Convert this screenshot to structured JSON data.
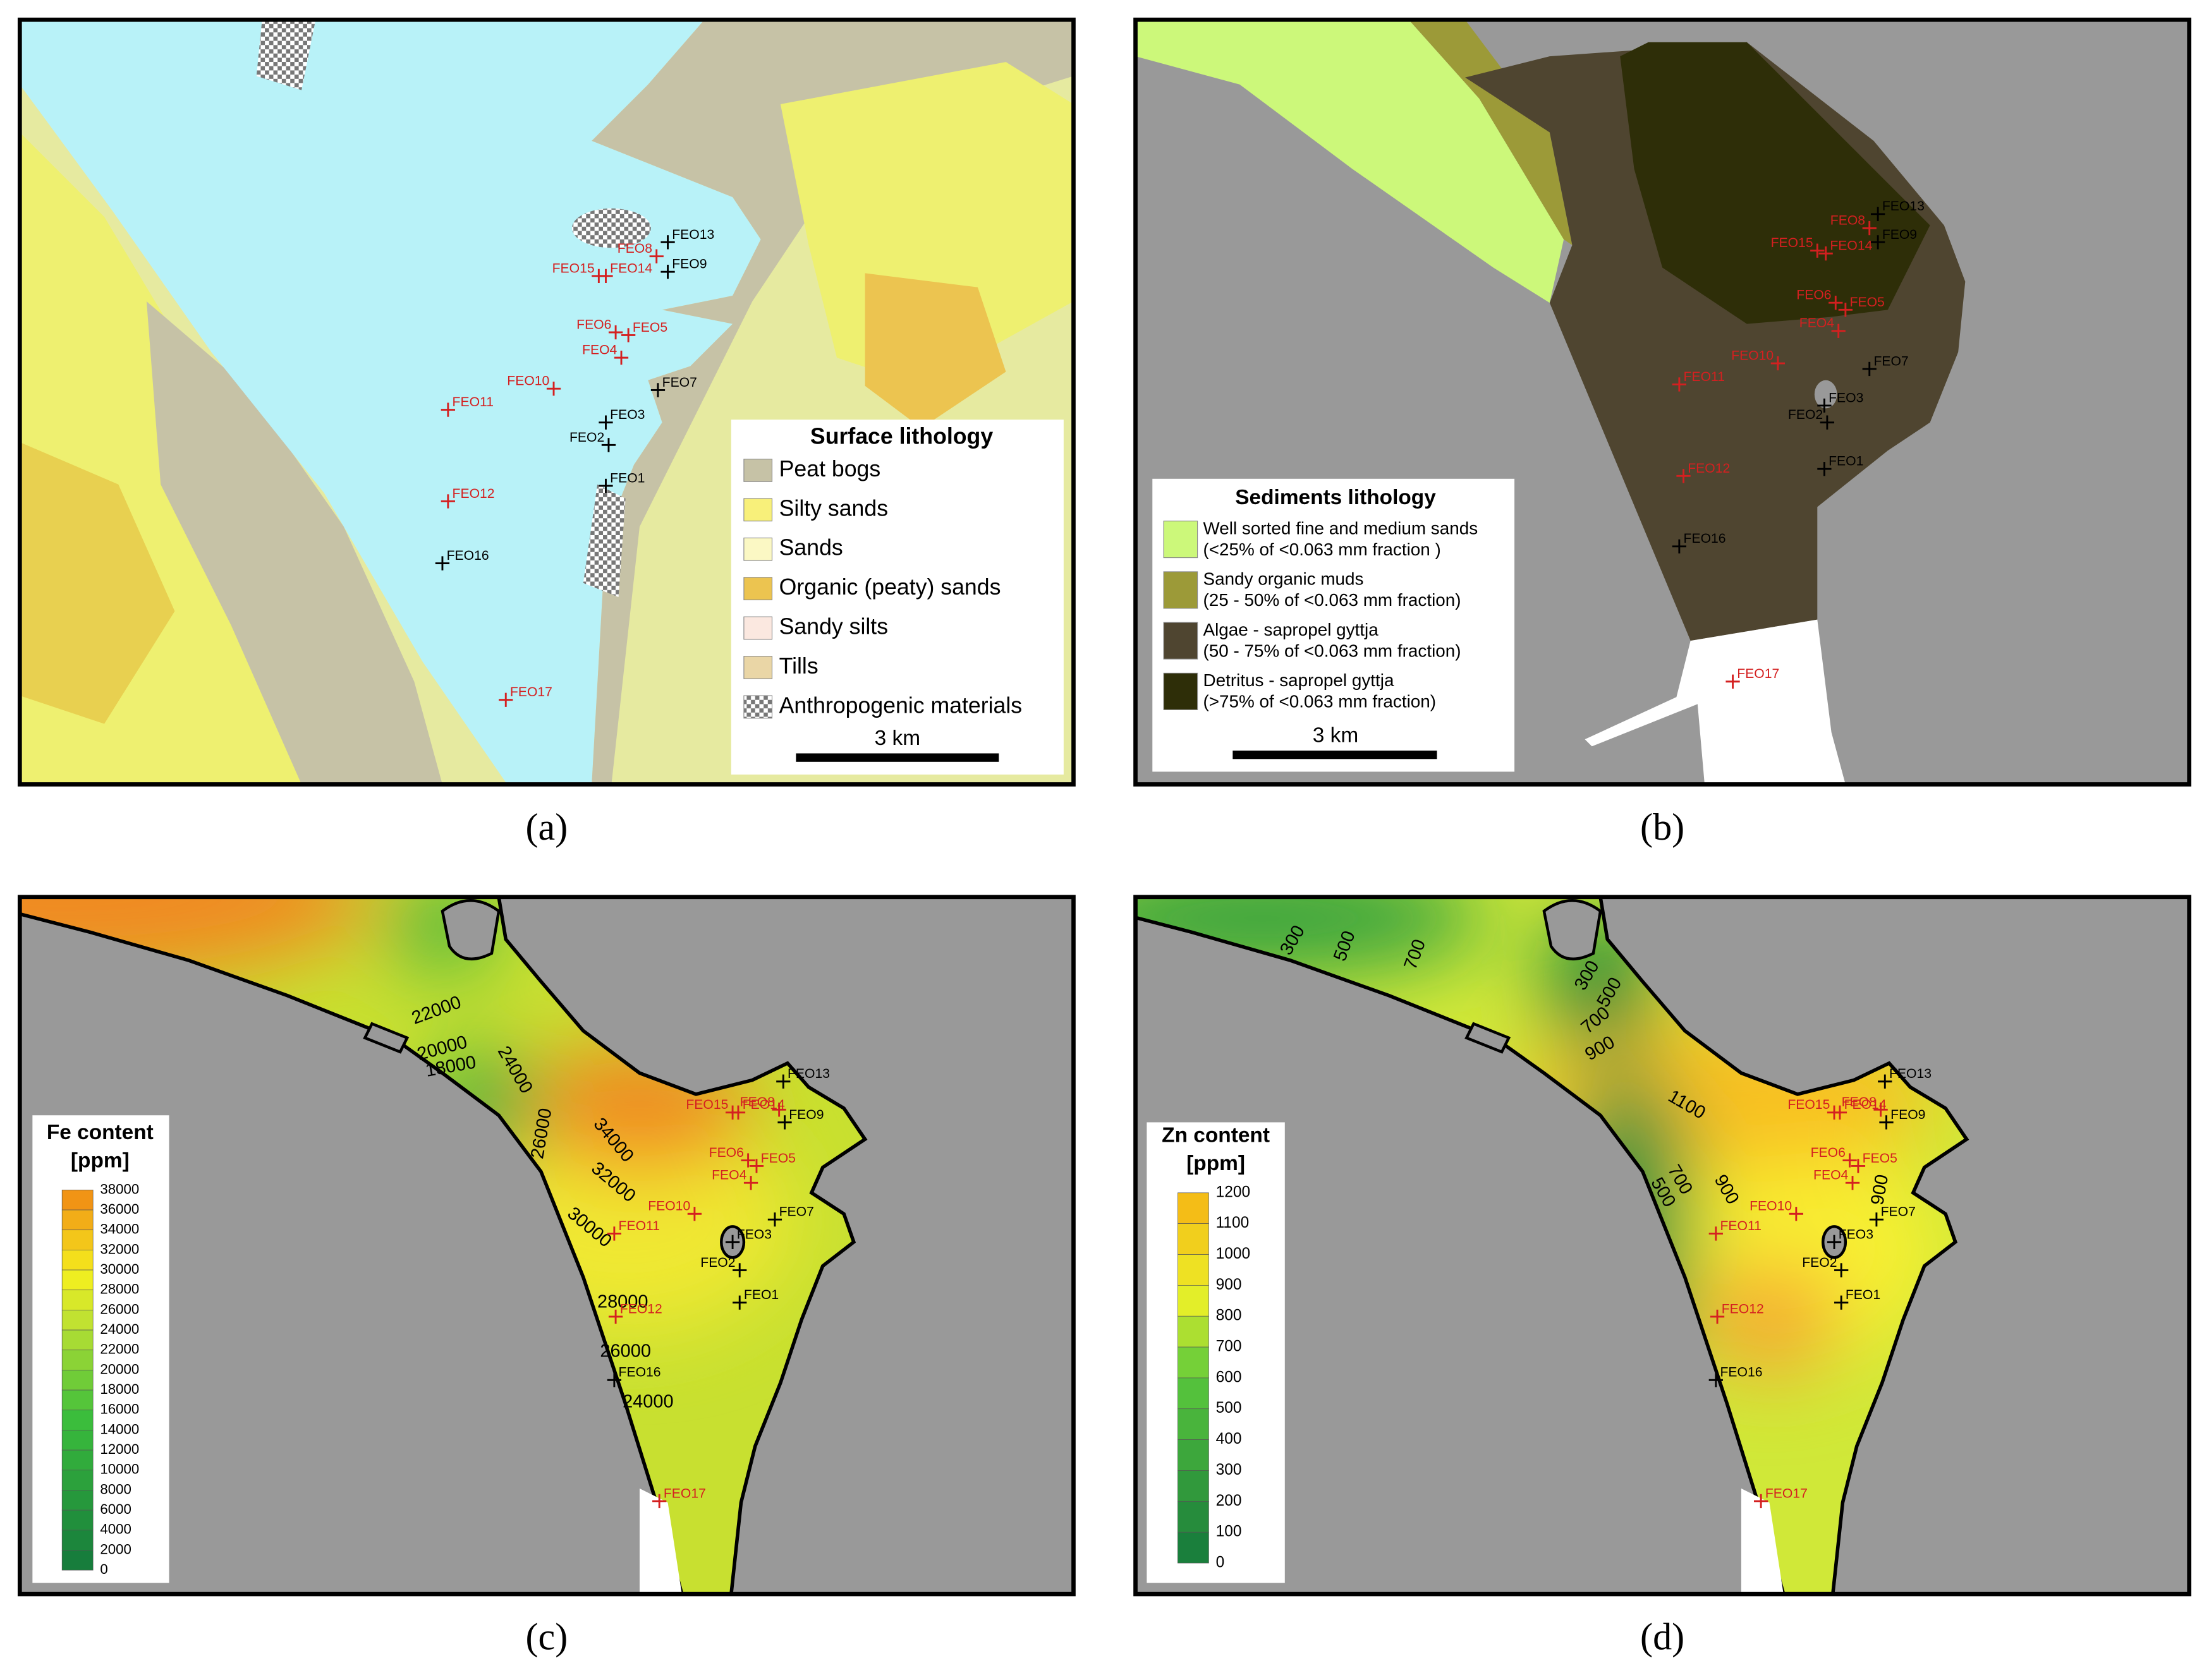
{
  "panels": [
    {
      "caption": "(a)",
      "legend": {
        "title": "Surface lithology",
        "scale": "3 km",
        "items": [
          {
            "label": "Peat bogs",
            "color": "#c6c2a6"
          },
          {
            "label": "Silty sands",
            "color": "#f8f07a"
          },
          {
            "label": "Sands",
            "color": "#fbf8c4"
          },
          {
            "label": "Organic (peaty) sands",
            "color": "#ecc450"
          },
          {
            "label": "Sandy silts",
            "color": "#fbe8e0"
          },
          {
            "label": "Tills",
            "color": "#ead6a6"
          },
          {
            "label": "Anthropogenic materials",
            "color": "url(#checker)"
          }
        ]
      },
      "stations": [
        {
          "label": "FEO1",
          "color": "#000000"
        },
        {
          "label": "FEO2",
          "color": "#000000"
        },
        {
          "label": "FEO3",
          "color": "#000000"
        },
        {
          "label": "FEO4",
          "color": "#d42020"
        },
        {
          "label": "FEO5",
          "color": "#d42020"
        },
        {
          "label": "FEO6",
          "color": "#d42020"
        },
        {
          "label": "FEO7",
          "color": "#000000"
        },
        {
          "label": "FEO8",
          "color": "#d42020"
        },
        {
          "label": "FEO9",
          "color": "#000000"
        },
        {
          "label": "FEO10",
          "color": "#d42020"
        },
        {
          "label": "FEO11",
          "color": "#d42020"
        },
        {
          "label": "FEO12",
          "color": "#d42020"
        },
        {
          "label": "FEO13",
          "color": "#000000"
        },
        {
          "label": "FEO14",
          "color": "#d42020"
        },
        {
          "label": "FEO15",
          "color": "#d42020"
        },
        {
          "label": "FEO16",
          "color": "#000000"
        },
        {
          "label": "FEO17",
          "color": "#d42020"
        }
      ]
    },
    {
      "caption": "(b)",
      "legend": {
        "title": "Sediments lithology",
        "scale": "3 km",
        "items": [
          {
            "label": "Well sorted fine and medium sands",
            "note": "(<25% of <0.063 mm fraction )",
            "color": "#ccf87a"
          },
          {
            "label": "Sandy organic muds",
            "note": "(25 - 50% of <0.063 mm fraction)",
            "color": "#9c9a38"
          },
          {
            "label": "Algae - sapropel gyttja",
            "note": "(50 - 75% of <0.063 mm fraction)",
            "color": "#4f4530"
          },
          {
            "label": "Detritus - sapropel gyttja",
            "note": "(>75% of <0.063 mm fraction)",
            "color": "#2e2e08"
          }
        ]
      },
      "stations": [
        {
          "label": "FEO1",
          "color": "#000000"
        },
        {
          "label": "FEO2",
          "color": "#000000"
        },
        {
          "label": "FEO3",
          "color": "#000000"
        },
        {
          "label": "FEO4",
          "color": "#d42020"
        },
        {
          "label": "FEO5",
          "color": "#d42020"
        },
        {
          "label": "FEO6",
          "color": "#d42020"
        },
        {
          "label": "FEO7",
          "color": "#000000"
        },
        {
          "label": "FEO8",
          "color": "#d42020"
        },
        {
          "label": "FEO9",
          "color": "#000000"
        },
        {
          "label": "FEO10",
          "color": "#d42020"
        },
        {
          "label": "FEO11",
          "color": "#d42020"
        },
        {
          "label": "FEO12",
          "color": "#d42020"
        },
        {
          "label": "FEO13",
          "color": "#000000"
        },
        {
          "label": "FEO14",
          "color": "#d42020"
        },
        {
          "label": "FEO15",
          "color": "#d42020"
        },
        {
          "label": "FEO16",
          "color": "#000000"
        },
        {
          "label": "FEO17",
          "color": "#d42020"
        }
      ]
    },
    {
      "caption": "(c)",
      "legend": {
        "title": "Fe content",
        "unit": "[ppm]",
        "ticks": [
          38000,
          36000,
          34000,
          32000,
          30000,
          28000,
          26000,
          24000,
          22000,
          20000,
          18000,
          16000,
          14000,
          12000,
          10000,
          8000,
          6000,
          4000,
          2000,
          0
        ]
      },
      "contour_labels": [
        22000,
        20000,
        18000,
        24000,
        26000,
        34000,
        32000,
        30000,
        28000,
        26000,
        24000
      ],
      "stations": [
        {
          "label": "FEO1",
          "color": "#000000"
        },
        {
          "label": "FEO2",
          "color": "#000000"
        },
        {
          "label": "FEO3",
          "color": "#000000"
        },
        {
          "label": "FEO4",
          "color": "#d42020"
        },
        {
          "label": "FEO5",
          "color": "#d42020"
        },
        {
          "label": "FEO6",
          "color": "#d42020"
        },
        {
          "label": "FEO7",
          "color": "#000000"
        },
        {
          "label": "FEO8",
          "color": "#d42020"
        },
        {
          "label": "FEO9",
          "color": "#000000"
        },
        {
          "label": "FEO10",
          "color": "#d42020"
        },
        {
          "label": "FEO11",
          "color": "#d42020"
        },
        {
          "label": "FEO12",
          "color": "#d42020"
        },
        {
          "label": "FEO13",
          "color": "#000000"
        },
        {
          "label": "FEO14",
          "color": "#d42020"
        },
        {
          "label": "FEO15",
          "color": "#d42020"
        },
        {
          "label": "FEO16",
          "color": "#000000"
        },
        {
          "label": "FEO17",
          "color": "#d42020"
        }
      ]
    },
    {
      "caption": "(d)",
      "legend": {
        "title": "Zn content",
        "unit": "[ppm]",
        "ticks": [
          1200,
          1100,
          1000,
          900,
          800,
          700,
          600,
          500,
          400,
          300,
          200,
          100,
          0
        ]
      },
      "contour_labels": [
        300,
        500,
        700,
        300,
        500,
        700,
        900,
        1100,
        700,
        500,
        900,
        900
      ],
      "stations": [
        {
          "label": "FEO1",
          "color": "#000000"
        },
        {
          "label": "FEO2",
          "color": "#000000"
        },
        {
          "label": "FEO3",
          "color": "#000000"
        },
        {
          "label": "FEO4",
          "color": "#d42020"
        },
        {
          "label": "FEO5",
          "color": "#d42020"
        },
        {
          "label": "FEO6",
          "color": "#d42020"
        },
        {
          "label": "FEO7",
          "color": "#000000"
        },
        {
          "label": "FEO8",
          "color": "#d42020"
        },
        {
          "label": "FEO9",
          "color": "#000000"
        },
        {
          "label": "FEO10",
          "color": "#d42020"
        },
        {
          "label": "FEO11",
          "color": "#d42020"
        },
        {
          "label": "FEO12",
          "color": "#d42020"
        },
        {
          "label": "FEO13",
          "color": "#000000"
        },
        {
          "label": "FEO14",
          "color": "#d42020"
        },
        {
          "label": "FEO15",
          "color": "#d42020"
        },
        {
          "label": "FEO16",
          "color": "#000000"
        },
        {
          "label": "FEO17",
          "color": "#d42020"
        }
      ]
    }
  ]
}
